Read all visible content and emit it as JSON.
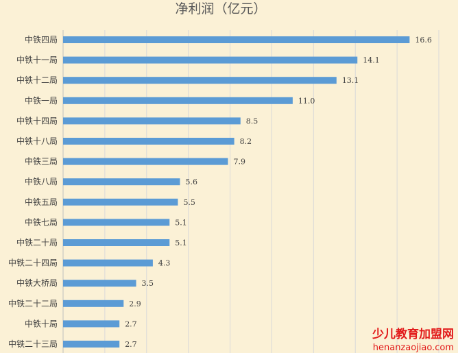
{
  "chart_data": {
    "type": "bar",
    "orientation": "horizontal",
    "title": "净利润（亿元）",
    "categories": [
      "中铁四局",
      "中铁十一局",
      "中铁十二局",
      "中铁一局",
      "中铁十四局",
      "中铁十八局",
      "中铁三局",
      "中铁八局",
      "中铁五局",
      "中铁七局",
      "中铁二十局",
      "中铁二十四局",
      "中铁大桥局",
      "中铁二十二局",
      "中铁十局",
      "中铁二十三局"
    ],
    "values": [
      16.6,
      14.1,
      13.1,
      11.0,
      8.5,
      8.2,
      7.9,
      5.6,
      5.5,
      5.1,
      5.1,
      4.3,
      3.5,
      2.9,
      2.7,
      2.7
    ],
    "value_labels": [
      "16.6",
      "14.1",
      "13.1",
      "11.0",
      "8.5",
      "8.2",
      "7.9",
      "5.6",
      "5.5",
      "5.1",
      "5.1",
      "4.3",
      "3.5",
      "2.9",
      "2.7",
      "2.7"
    ],
    "xlim": [
      0,
      18
    ],
    "grid": true,
    "legend": "none",
    "bar_color": "#5b9bd5"
  },
  "watermark": {
    "line1": "少儿教育加盟网",
    "line2": "henanzaojiao.com"
  }
}
